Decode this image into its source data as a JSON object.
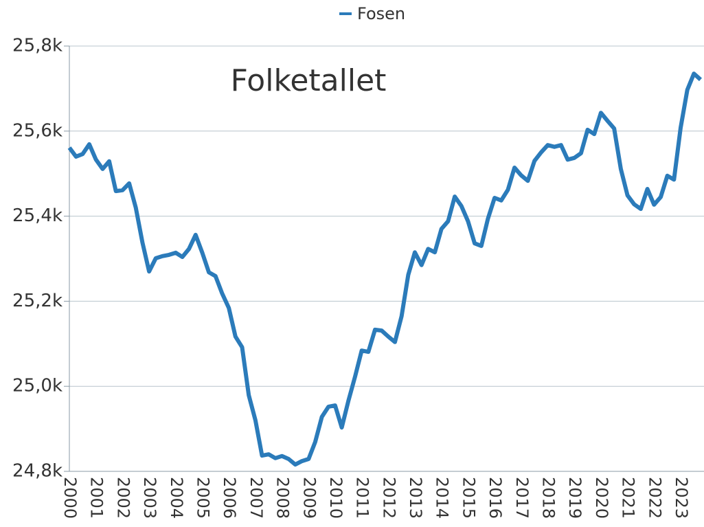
{
  "chart_data": {
    "type": "line",
    "title": "Folketallet",
    "categories": [
      "2000",
      null,
      null,
      null,
      "2001",
      null,
      null,
      null,
      "2002",
      null,
      null,
      null,
      "2003",
      null,
      null,
      null,
      "2004",
      null,
      null,
      null,
      "2005",
      null,
      null,
      null,
      "2006",
      null,
      null,
      null,
      "2007",
      null,
      null,
      null,
      "2008",
      null,
      null,
      null,
      "2009",
      null,
      null,
      null,
      "2010",
      null,
      null,
      null,
      "2011",
      null,
      null,
      null,
      "2012",
      null,
      null,
      null,
      "2013",
      null,
      null,
      null,
      "2014",
      null,
      null,
      null,
      "2015",
      null,
      null,
      null,
      "2016",
      null,
      null,
      null,
      "2017",
      null,
      null,
      null,
      "2018",
      null,
      null,
      null,
      "2019",
      null,
      null,
      null,
      "2020",
      null,
      null,
      null,
      "2021",
      null,
      null,
      null,
      "2022",
      null,
      null,
      null,
      "2023",
      null,
      null,
      null
    ],
    "series": [
      {
        "name": "Fosen",
        "color": "#2b7bba",
        "values": [
          25561,
          25540,
          25546,
          25569,
          25533,
          25511,
          25529,
          25459,
          25461,
          25477,
          25420,
          25338,
          25270,
          25301,
          25306,
          25309,
          25314,
          25304,
          25323,
          25356,
          25314,
          25268,
          25259,
          25218,
          25184,
          25117,
          25092,
          24979,
          24920,
          24837,
          24840,
          24831,
          24836,
          24829,
          24816,
          24824,
          24829,
          24869,
          24928,
          24952,
          24955,
          24903,
          24966,
          25023,
          25084,
          25081,
          25133,
          25131,
          25117,
          25104,
          25165,
          25262,
          25315,
          25285,
          25323,
          25315,
          25370,
          25388,
          25446,
          25424,
          25388,
          25336,
          25330,
          25394,
          25443,
          25437,
          25462,
          25514,
          25496,
          25483,
          25530,
          25550,
          25567,
          25563,
          25567,
          25533,
          25537,
          25548,
          25603,
          25593,
          25643,
          25624,
          25606,
          25511,
          25449,
          25428,
          25417,
          25464,
          25427,
          25445,
          25495,
          25486,
          25608,
          25697,
          25735,
          25721
        ]
      }
    ],
    "ylim": [
      24800,
      25800
    ],
    "yticks": [
      {
        "value": 24800,
        "label": "24,8k"
      },
      {
        "value": 25000,
        "label": "25,0k"
      },
      {
        "value": 25200,
        "label": "25,2k"
      },
      {
        "value": 25400,
        "label": "25,4k"
      },
      {
        "value": 25600,
        "label": "25,6k"
      },
      {
        "value": 25800,
        "label": "25,8k"
      }
    ],
    "grid": true,
    "legend": "top"
  }
}
